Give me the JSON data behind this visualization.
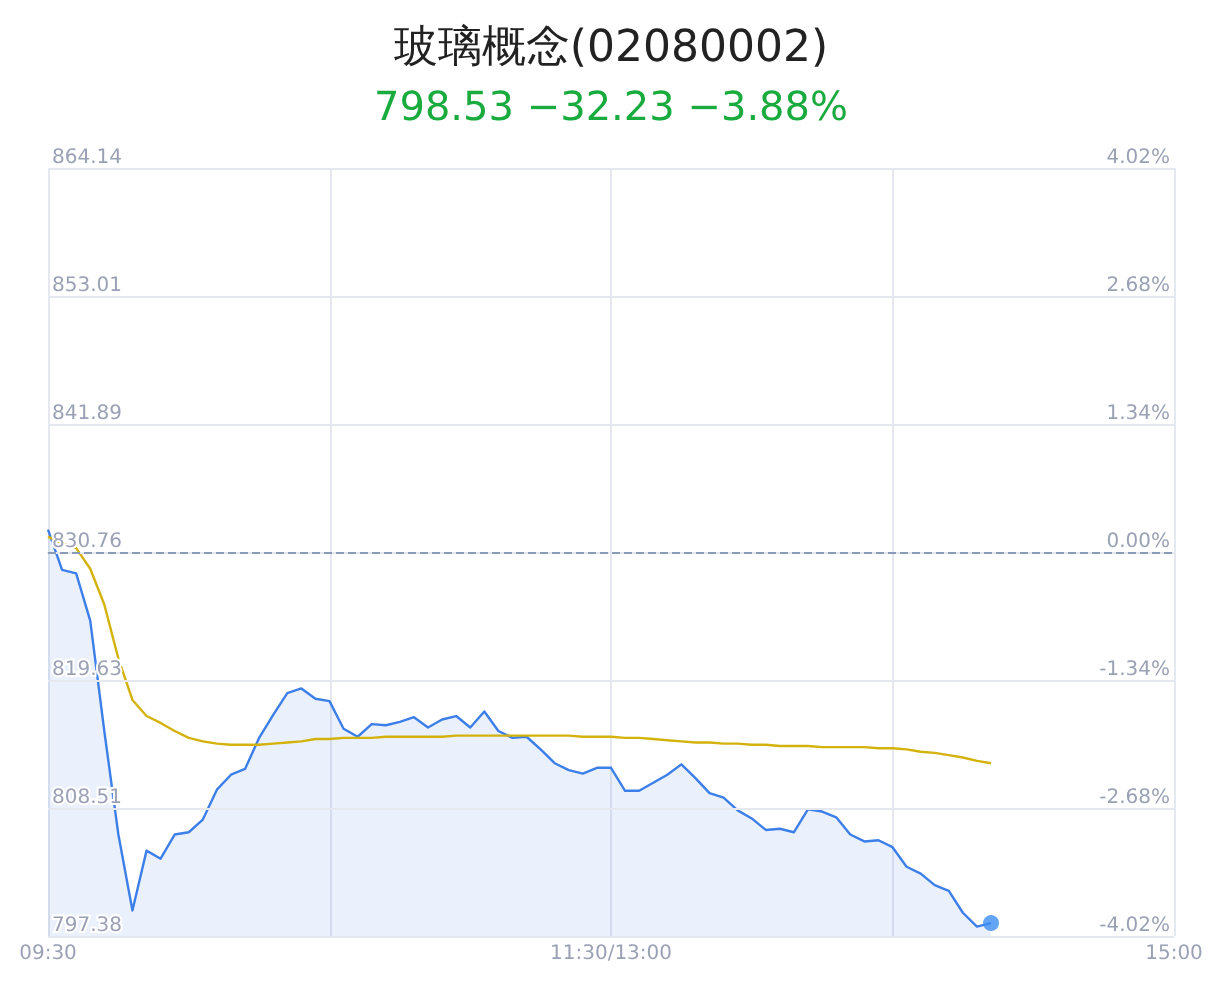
{
  "chart_data": {
    "type": "area",
    "title": "玻璃概念(02080002)",
    "subtitle": "798.53 −32.23 −3.88%",
    "categories": [
      "09:30",
      null,
      null,
      null,
      null,
      null,
      null,
      null,
      null,
      null,
      null,
      null,
      null,
      null,
      null,
      null,
      null,
      null,
      null,
      null,
      null,
      null,
      null,
      null,
      null,
      null,
      null,
      null,
      null,
      null,
      null,
      null,
      null,
      null,
      null,
      null,
      null,
      null,
      null,
      null,
      "11:30/13:00",
      null,
      null,
      null,
      null,
      null,
      null,
      null,
      null,
      null,
      null,
      null,
      null,
      null,
      null,
      null,
      null,
      null,
      null,
      null,
      null,
      null,
      null,
      null,
      null,
      null,
      null,
      null,
      null,
      null,
      null,
      null,
      null,
      null,
      null,
      null,
      null,
      null,
      null,
      null,
      "15:00"
    ],
    "ylim": [
      797.38,
      864.14
    ],
    "yticks": [
      797.38,
      808.51,
      819.63,
      830.76,
      841.89,
      853.01,
      864.14
    ],
    "y2lim": [
      -4.02,
      4.02
    ],
    "y2ticks": [
      {
        "value": -4.02,
        "label": "-4.02%"
      },
      {
        "value": -2.68,
        "label": "-2.68%"
      },
      {
        "value": -1.34,
        "label": "-1.34%"
      },
      {
        "value": 0,
        "label": "0.00%"
      },
      {
        "value": 1.34,
        "label": "1.34%"
      },
      {
        "value": 2.68,
        "label": "2.68%"
      },
      {
        "value": 4.02,
        "label": "4.02%"
      }
    ],
    "grid": true,
    "ref_lines": [
      {
        "axis": "y",
        "value": 830.76,
        "color": "#8a9bb8",
        "line_style": "dashed"
      }
    ],
    "series": [
      {
        "type": "area",
        "color": "#3d7fe8",
        "values": [
          832.7,
          829.2,
          828.9,
          824.8,
          815.2,
          806.2,
          799.6,
          804.8,
          804.1,
          806.2,
          806.4,
          807.5,
          810.1,
          811.4,
          811.9,
          814.6,
          816.6,
          818.5,
          818.9,
          818.0,
          817.8,
          815.4,
          814.7,
          815.8,
          815.7,
          816.0,
          816.4,
          815.5,
          816.2,
          816.5,
          815.5,
          816.9,
          815.2,
          814.6,
          814.7,
          813.6,
          812.4,
          811.8,
          811.5,
          812.0,
          812.0,
          810.0,
          810.0,
          810.7,
          811.4,
          812.3,
          811.1,
          809.8,
          809.4,
          808.3,
          807.6,
          806.6,
          806.7,
          806.4,
          808.4,
          808.2,
          807.7,
          806.2,
          805.6,
          805.7,
          805.1,
          803.4,
          802.8,
          801.8,
          801.3,
          799.4,
          798.2,
          798.5,
          null,
          null,
          null,
          null,
          null,
          null,
          null,
          null,
          null,
          null,
          null,
          null,
          null
        ]
      },
      {
        "type": "line",
        "color": "#d4b20c",
        "values": [
          832.1,
          831.5,
          831.1,
          829.3,
          826.2,
          821.5,
          817.9,
          816.5,
          815.9,
          815.2,
          814.6,
          814.3,
          814.1,
          814.0,
          814.0,
          814.0,
          814.1,
          814.2,
          814.3,
          814.5,
          814.5,
          814.6,
          814.6,
          814.6,
          814.7,
          814.7,
          814.7,
          814.7,
          814.7,
          814.8,
          814.8,
          814.8,
          814.8,
          814.8,
          814.8,
          814.8,
          814.8,
          814.8,
          814.7,
          814.7,
          814.7,
          814.6,
          814.6,
          814.5,
          814.4,
          814.3,
          814.2,
          814.2,
          814.1,
          814.1,
          814.0,
          814.0,
          813.9,
          813.9,
          813.9,
          813.8,
          813.8,
          813.8,
          813.8,
          813.7,
          813.7,
          813.6,
          813.4,
          813.3,
          813.1,
          812.9,
          812.6,
          812.4,
          null,
          null,
          null,
          null,
          null,
          null,
          null,
          null,
          null,
          null,
          null,
          null,
          null
        ]
      },
      {
        "type": "scatter",
        "color": "#3d8ff0",
        "marker": "circle",
        "values": [
          null,
          null,
          null,
          null,
          null,
          null,
          null,
          null,
          null,
          null,
          null,
          null,
          null,
          null,
          null,
          null,
          null,
          null,
          null,
          null,
          null,
          null,
          null,
          null,
          null,
          null,
          null,
          null,
          null,
          null,
          null,
          null,
          null,
          null,
          null,
          null,
          null,
          null,
          null,
          null,
          null,
          null,
          null,
          null,
          null,
          null,
          null,
          null,
          null,
          null,
          null,
          null,
          null,
          null,
          null,
          null,
          null,
          null,
          null,
          null,
          null,
          null,
          null,
          null,
          null,
          null,
          null,
          798.5,
          null,
          null,
          null,
          null,
          null,
          null,
          null,
          null,
          null,
          null,
          null,
          null,
          null
        ]
      }
    ]
  }
}
